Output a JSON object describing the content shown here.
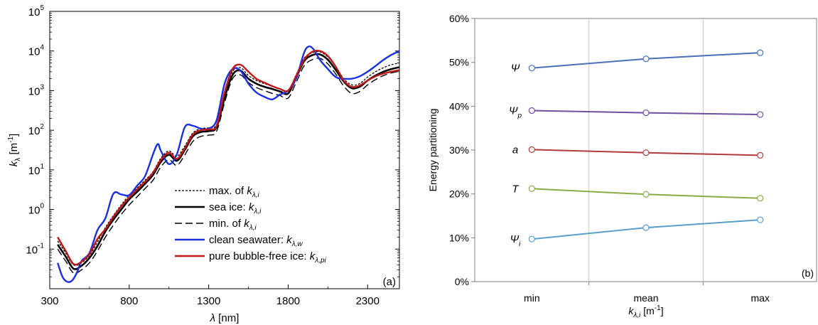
{
  "colors": {
    "clean_seawater": "#1a2fe0",
    "pure_ice": "#c01818",
    "psi": "#4a6fb5",
    "psi_p": "#6f4fa0",
    "a": "#b03a3a",
    "T": "#8aab46",
    "psi_i": "#5a9ec8",
    "grid": "#c8c8c8"
  },
  "chart_data": [
    {
      "panel_label": "(a)",
      "type": "line",
      "ylog": true,
      "xlim": [
        300,
        2500
      ],
      "ylim": [
        0.01,
        100000
      ],
      "xticks": [
        "300",
        "800",
        "1300",
        "1800",
        "2300"
      ],
      "yticks": [
        {
          "base": "10",
          "exp": "-1"
        },
        {
          "base": "10",
          "exp": "0"
        },
        {
          "base": "10",
          "exp": "1"
        },
        {
          "base": "10",
          "exp": "2"
        },
        {
          "base": "10",
          "exp": "3"
        },
        {
          "base": "10",
          "exp": "4"
        },
        {
          "base": "10",
          "exp": "5"
        }
      ],
      "xlabel": {
        "sym": "λ",
        "unit": " [nm]"
      },
      "ylabel": {
        "sym": "k",
        "sub": "λ",
        "unit": " [m",
        "sup": "-1",
        "close": "]"
      },
      "legend_placement": "lower-right",
      "series": [
        {
          "key": "max",
          "name": {
            "pre": "max. of ",
            "sym": "k",
            "sub": "λ,i"
          },
          "style": "dotted",
          "x": [
            350,
            400,
            450,
            500,
            550,
            600,
            650,
            700,
            750,
            800,
            850,
            900,
            950,
            1000,
            1050,
            1100,
            1150,
            1200,
            1250,
            1300,
            1350,
            1400,
            1450,
            1500,
            1550,
            1600,
            1650,
            1700,
            1750,
            1800,
            1850,
            1900,
            1950,
            2000,
            2050,
            2100,
            2150,
            2200,
            2250,
            2300,
            2350,
            2400,
            2450,
            2500
          ],
          "y": [
            0.16,
            0.08,
            0.04,
            0.045,
            0.07,
            0.15,
            0.35,
            0.7,
            1.3,
            2.3,
            3.5,
            5.5,
            9,
            20,
            30,
            22,
            40,
            85,
            110,
            115,
            140,
            800,
            3000,
            3800,
            2400,
            1800,
            1500,
            1300,
            1100,
            1000,
            2500,
            6500,
            9000,
            9500,
            7000,
            4000,
            2000,
            1400,
            1500,
            2200,
            3000,
            3800,
            4500,
            5000
          ]
        },
        {
          "key": "sea",
          "name": {
            "pre": "sea ice:  ",
            "sym": "k",
            "sub": "λ,i"
          },
          "style": "solid-black",
          "x": [
            350,
            400,
            450,
            500,
            550,
            600,
            650,
            700,
            750,
            800,
            850,
            900,
            950,
            1000,
            1050,
            1100,
            1150,
            1200,
            1250,
            1300,
            1350,
            1400,
            1450,
            1500,
            1550,
            1600,
            1650,
            1700,
            1750,
            1800,
            1850,
            1900,
            1950,
            2000,
            2050,
            2100,
            2150,
            2200,
            2250,
            2300,
            2350,
            2400,
            2450,
            2500
          ],
          "y": [
            0.13,
            0.065,
            0.032,
            0.038,
            0.06,
            0.12,
            0.28,
            0.55,
            1.0,
            1.8,
            2.8,
            4.5,
            7.5,
            16,
            24,
            17,
            32,
            70,
            90,
            95,
            120,
            650,
            2500,
            3200,
            2000,
            1500,
            1250,
            1100,
            950,
            850,
            2100,
            5500,
            7800,
            8200,
            6000,
            3300,
            1700,
            1150,
            1250,
            1800,
            2400,
            3000,
            3500,
            3900
          ]
        },
        {
          "key": "min",
          "name": {
            "pre": "min. of ",
            "sym": "k",
            "sub": "λ,i"
          },
          "style": "dashed",
          "x": [
            350,
            400,
            450,
            500,
            550,
            600,
            650,
            700,
            750,
            800,
            850,
            900,
            950,
            1000,
            1050,
            1100,
            1150,
            1200,
            1250,
            1300,
            1350,
            1400,
            1450,
            1500,
            1550,
            1600,
            1650,
            1700,
            1750,
            1800,
            1850,
            1900,
            1950,
            2000,
            2050,
            2100,
            2150,
            2200,
            2250,
            2300,
            2350,
            2400,
            2450,
            2500
          ],
          "y": [
            0.1,
            0.05,
            0.025,
            0.03,
            0.045,
            0.09,
            0.2,
            0.4,
            0.75,
            1.3,
            2.1,
            3.4,
            5.5,
            12,
            18,
            13,
            24,
            52,
            70,
            75,
            95,
            500,
            2000,
            2500,
            1600,
            1200,
            1000,
            850,
            750,
            650,
            1600,
            4200,
            6000,
            6500,
            4700,
            2600,
            1300,
            850,
            950,
            1400,
            1900,
            2400,
            2800,
            3100
          ]
        },
        {
          "key": "water",
          "name": {
            "pre": "clean seawater: ",
            "sym": "k",
            "sub": "λ,w"
          },
          "style": "solid-blue",
          "x": [
            350,
            380,
            410,
            440,
            470,
            500,
            550,
            600,
            650,
            700,
            750,
            800,
            850,
            900,
            950,
            980,
            1000,
            1050,
            1100,
            1150,
            1200,
            1250,
            1300,
            1350,
            1400,
            1450,
            1500,
            1550,
            1600,
            1650,
            1700,
            1750,
            1800,
            1850,
            1900,
            1930,
            1960,
            2000,
            2050,
            2100,
            2150,
            2200,
            2250,
            2300,
            2350,
            2400,
            2450,
            2500
          ],
          "y": [
            0.045,
            0.02,
            0.015,
            0.016,
            0.025,
            0.05,
            0.08,
            0.3,
            0.6,
            2.5,
            2.4,
            2.3,
            4,
            7,
            25,
            45,
            30,
            14,
            25,
            120,
            130,
            110,
            110,
            180,
            1500,
            3500,
            3200,
            1500,
            900,
            700,
            600,
            800,
            1000,
            2000,
            9000,
            13000,
            11000,
            6000,
            3500,
            2200,
            2000,
            2000,
            2300,
            3000,
            4200,
            6000,
            8000,
            10000
          ]
        },
        {
          "key": "ice",
          "name": {
            "pre": "pure bubble-free ice: ",
            "sym": "k",
            "sub": "λ,pi"
          },
          "style": "solid-red",
          "x": [
            350,
            400,
            450,
            500,
            550,
            600,
            650,
            700,
            750,
            800,
            850,
            900,
            950,
            1000,
            1050,
            1100,
            1150,
            1200,
            1250,
            1300,
            1350,
            1400,
            1450,
            1500,
            1550,
            1600,
            1650,
            1700,
            1750,
            1800,
            1850,
            1900,
            1950,
            2000,
            2050,
            2100,
            2150,
            2200,
            2250,
            2300,
            2350,
            2400,
            2450,
            2500
          ],
          "y": [
            0.2,
            0.09,
            0.042,
            0.048,
            0.075,
            0.18,
            0.32,
            0.65,
            1.2,
            2.0,
            3.2,
            5.0,
            8.5,
            18,
            27,
            19,
            35,
            78,
            100,
            105,
            130,
            900,
            3500,
            4500,
            3000,
            2000,
            1600,
            1300,
            1100,
            1000,
            2300,
            6000,
            9500,
            10000,
            7500,
            4000,
            1800,
            1250,
            1350,
            1800,
            2300,
            2700,
            3000,
            3300
          ]
        }
      ]
    },
    {
      "panel_label": "(b)",
      "type": "line",
      "categories": [
        "min",
        "mean",
        "max"
      ],
      "ylim": [
        0,
        60
      ],
      "yticks": [
        "0%",
        "10%",
        "20%",
        "30%",
        "40%",
        "50%",
        "60%"
      ],
      "ylabel": "Energy partitioning",
      "xlabel": {
        "sym": "k",
        "sub": "λ,i",
        "unit": "  [m",
        "sup": "-1",
        "close": "]"
      },
      "series": [
        {
          "key": "psi",
          "name": {
            "sym": "Ψ",
            "sub": ""
          },
          "values": [
            48.7,
            50.8,
            52.2
          ]
        },
        {
          "key": "psi_p",
          "name": {
            "sym": "Ψ",
            "sub": "p"
          },
          "values": [
            39.0,
            38.5,
            38.1
          ]
        },
        {
          "key": "a",
          "name": {
            "sym": "a",
            "sub": ""
          },
          "values": [
            30.1,
            29.4,
            28.8
          ]
        },
        {
          "key": "T",
          "name": {
            "sym": "T",
            "sub": ""
          },
          "values": [
            21.2,
            19.9,
            19.0
          ]
        },
        {
          "key": "psi_i",
          "name": {
            "sym": "Ψ",
            "sub": "i"
          },
          "values": [
            9.7,
            12.3,
            14.1
          ]
        }
      ]
    }
  ]
}
